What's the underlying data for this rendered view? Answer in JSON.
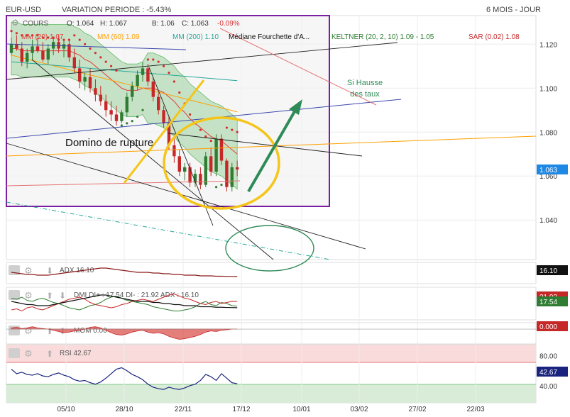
{
  "header": {
    "symbol": "EUR-USD",
    "variation": "VARIATION PERIODE : -5.43%",
    "period": "6 MOIS - JOUR"
  },
  "legend": {
    "cours": "COURS",
    "o": "O: 1.064",
    "h": "H: 1.067",
    "b": "B: 1.06",
    "c": "C: 1.063",
    "chg": "-0.09%",
    "mm20": "MM (20) 1.07",
    "mm60": "MM (60) 1.09",
    "mm200": "MM (200) 1.10",
    "mediane": "Médiane Fourchette d'A...",
    "keltner": "KELTNER (20, 2, 10) 1.09 - 1.05",
    "sar": "SAR (0.02) 1.08"
  },
  "colors": {
    "price_up": "#2e7d32",
    "price_down": "#c62828",
    "sar": "#d32f2f",
    "mm20": "#e53935",
    "mm60": "#ffa000",
    "mm200": "#26a69a",
    "keltner_fill": "#a5d6a7",
    "frame": "#7b1fa2",
    "annotation_yellow": "#f5c518",
    "annotation_arrow": "#2e8b57",
    "current_price_bg": "#1e88e5"
  },
  "annotations": {
    "domino": "Domino de rupture",
    "hausse1": "Si Hausse",
    "hausse2": "des taux"
  },
  "chart_data": [
    {
      "type": "candlestick",
      "title": "EUR-USD",
      "y_ticks": [
        1.04,
        1.06,
        1.08,
        1.1,
        1.12
      ],
      "ylim": [
        1.022,
        1.133
      ],
      "x_ticks": [
        "05/10",
        "28/10",
        "22/11",
        "17/12",
        "10/01",
        "03/02",
        "27/02",
        "22/03"
      ],
      "current_value": 1.063,
      "current_label": "1.063",
      "ohlc": [
        [
          1.116,
          1.123,
          1.115,
          1.12
        ],
        [
          1.12,
          1.124,
          1.117,
          1.118
        ],
        [
          1.118,
          1.121,
          1.11,
          1.112
        ],
        [
          1.112,
          1.118,
          1.109,
          1.116
        ],
        [
          1.116,
          1.122,
          1.113,
          1.119
        ],
        [
          1.119,
          1.123,
          1.116,
          1.117
        ],
        [
          1.117,
          1.121,
          1.112,
          1.113
        ],
        [
          1.113,
          1.12,
          1.111,
          1.118
        ],
        [
          1.118,
          1.123,
          1.115,
          1.121
        ],
        [
          1.121,
          1.124,
          1.116,
          1.118
        ],
        [
          1.118,
          1.122,
          1.114,
          1.12
        ],
        [
          1.12,
          1.122,
          1.112,
          1.114
        ],
        [
          1.114,
          1.118,
          1.107,
          1.109
        ],
        [
          1.109,
          1.113,
          1.1,
          1.103
        ],
        [
          1.103,
          1.107,
          1.099,
          1.105
        ],
        [
          1.105,
          1.109,
          1.098,
          1.1
        ],
        [
          1.1,
          1.104,
          1.094,
          1.097
        ],
        [
          1.097,
          1.101,
          1.092,
          1.094
        ],
        [
          1.094,
          1.097,
          1.087,
          1.09
        ],
        [
          1.09,
          1.094,
          1.085,
          1.088
        ],
        [
          1.088,
          1.092,
          1.083,
          1.085
        ],
        [
          1.085,
          1.09,
          1.084,
          1.089
        ],
        [
          1.089,
          1.098,
          1.087,
          1.096
        ],
        [
          1.096,
          1.103,
          1.094,
          1.101
        ],
        [
          1.101,
          1.108,
          1.099,
          1.106
        ],
        [
          1.106,
          1.112,
          1.103,
          1.109
        ],
        [
          1.109,
          1.111,
          1.101,
          1.103
        ],
        [
          1.103,
          1.105,
          1.094,
          1.096
        ],
        [
          1.096,
          1.098,
          1.088,
          1.09
        ],
        [
          1.09,
          1.092,
          1.082,
          1.084
        ],
        [
          1.084,
          1.087,
          1.072,
          1.074
        ],
        [
          1.074,
          1.078,
          1.066,
          1.069
        ],
        [
          1.069,
          1.072,
          1.06,
          1.062
        ],
        [
          1.062,
          1.066,
          1.058,
          1.064
        ],
        [
          1.064,
          1.066,
          1.055,
          1.057
        ],
        [
          1.057,
          1.063,
          1.055,
          1.061
        ],
        [
          1.061,
          1.064,
          1.054,
          1.056
        ],
        [
          1.056,
          1.071,
          1.055,
          1.069
        ],
        [
          1.069,
          1.073,
          1.06,
          1.062
        ],
        [
          1.062,
          1.079,
          1.06,
          1.077
        ],
        [
          1.077,
          1.079,
          1.065,
          1.067
        ],
        [
          1.067,
          1.068,
          1.053,
          1.055
        ],
        [
          1.055,
          1.066,
          1.053,
          1.064
        ],
        [
          1.064,
          1.067,
          1.06,
          1.063
        ]
      ],
      "mm20": [
        1.118,
        1.118,
        1.117,
        1.117,
        1.117,
        1.117,
        1.117,
        1.117,
        1.117,
        1.117,
        1.117,
        1.117,
        1.116,
        1.115,
        1.113,
        1.112,
        1.11,
        1.108,
        1.106,
        1.104,
        1.102,
        1.1,
        1.099,
        1.099,
        1.099,
        1.1,
        1.1,
        1.1,
        1.099,
        1.098,
        1.096,
        1.094,
        1.091,
        1.089,
        1.086,
        1.084,
        1.082,
        1.08,
        1.078,
        1.077,
        1.076,
        1.074,
        1.072,
        1.07
      ],
      "sar": [
        1.126,
        1.125,
        1.124,
        1.124,
        1.124,
        1.124,
        1.123,
        1.123,
        1.123,
        1.122,
        1.122,
        1.122,
        1.124,
        1.122,
        1.12,
        1.118,
        1.116,
        1.114,
        1.112,
        1.11,
        1.108,
        1.083,
        1.084,
        1.085,
        1.087,
        1.09,
        1.113,
        1.113,
        1.112,
        1.11,
        1.107,
        1.103,
        1.098,
        1.093,
        1.088,
        1.084,
        1.081,
        1.078,
        1.076,
        1.055,
        1.056,
        1.082,
        1.081,
        1.08
      ]
    },
    {
      "type": "line",
      "title": "ADX 16.10",
      "current_value": 16.1,
      "current_label": "16.10",
      "series": [
        {
          "name": "ADX",
          "values": [
            22,
            21,
            20,
            19,
            19,
            18,
            18,
            18,
            19,
            20,
            21,
            22,
            23,
            24,
            25,
            26,
            27,
            28,
            28,
            27,
            26,
            25,
            24,
            23,
            22,
            22,
            22,
            21,
            21,
            20,
            20,
            19,
            19,
            18,
            18,
            18,
            17,
            17,
            17,
            16.5,
            16.5,
            16.3,
            16.2,
            16.1
          ]
        }
      ]
    },
    {
      "type": "line",
      "title": "DMI DI+ : 17.54  DI- : 21.92  ADX : 16.10",
      "current_value": 17.54,
      "current_label": "17.54",
      "upper_label": "21.92",
      "series": [
        {
          "name": "DI+",
          "values": [
            25,
            24,
            26,
            23,
            22,
            24,
            25,
            23,
            21,
            20,
            18,
            16,
            15,
            14,
            16,
            18,
            19,
            21,
            24,
            26,
            27,
            25,
            23,
            22,
            21,
            20,
            19,
            17,
            16,
            15,
            14,
            13,
            13,
            14,
            15,
            17,
            20,
            22,
            19,
            18,
            21,
            20,
            18,
            17.54
          ]
        },
        {
          "name": "DI-",
          "values": [
            14,
            15,
            13,
            16,
            17,
            15,
            14,
            16,
            18,
            20,
            22,
            24,
            25,
            26,
            24,
            21,
            19,
            18,
            17,
            16,
            17,
            19,
            20,
            22,
            23,
            24,
            23,
            22,
            24,
            26,
            28,
            29,
            27,
            25,
            24,
            22,
            20,
            19,
            21,
            22,
            20,
            21,
            22,
            21.92
          ]
        },
        {
          "name": "ADX",
          "values": [
            22,
            21,
            20,
            19,
            19,
            18,
            18,
            18,
            19,
            20,
            21,
            22,
            23,
            24,
            25,
            26,
            27,
            28,
            28,
            27,
            26,
            25,
            24,
            23,
            22,
            22,
            22,
            21,
            21,
            20,
            20,
            19,
            19,
            18,
            18,
            18,
            17,
            17,
            17,
            16.5,
            16.5,
            16.3,
            16.2,
            16.1
          ]
        }
      ]
    },
    {
      "type": "area",
      "title": "MOM 0.00",
      "current_value": 0.0,
      "current_label": "0.000",
      "series": [
        {
          "name": "MOM",
          "values": [
            0.2,
            0.3,
            0.1,
            0.2,
            0.4,
            0.2,
            0.1,
            0,
            -0.2,
            -0.4,
            -0.6,
            -0.5,
            -0.3,
            -0.2,
            0,
            0.3,
            0.4,
            0.2,
            -0.2,
            -0.6,
            -0.9,
            -1.0,
            -0.8,
            -0.5,
            -0.3,
            -0.2,
            -0.5,
            -0.7,
            -0.6,
            -0.8,
            -1.2,
            -1.5,
            -1.7,
            -1.6,
            -1.4,
            -1.2,
            -0.9,
            -0.5,
            -0.3,
            -0.4,
            -0.2,
            -0.1,
            0,
            0
          ]
        }
      ]
    },
    {
      "type": "line",
      "title": "RSI 42.67",
      "y_ticks": [
        40,
        80
      ],
      "overbought": 70,
      "oversold": 30,
      "current_value": 42.67,
      "current_label": "42.67",
      "series": [
        {
          "name": "RSI",
          "values": [
            62,
            56,
            58,
            55,
            54,
            56,
            53,
            52,
            55,
            57,
            54,
            52,
            48,
            46,
            47,
            44,
            42,
            45,
            50,
            56,
            62,
            64,
            60,
            55,
            52,
            48,
            42,
            38,
            36,
            35,
            38,
            36,
            35,
            37,
            40,
            42,
            47,
            55,
            52,
            47,
            56,
            50,
            44,
            42.67
          ]
        }
      ]
    }
  ]
}
